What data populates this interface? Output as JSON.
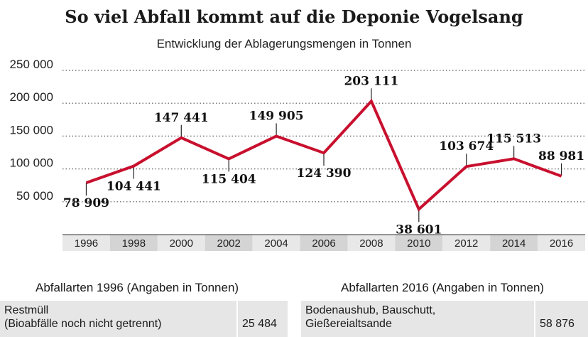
{
  "chart_data": {
    "type": "line",
    "title": "So viel Abfall kommt auf die Deponie Vogelsang",
    "subtitle": "Entwicklung der Ablagerungsmengen in Tonnen",
    "xlabel": "",
    "ylabel": "",
    "ylim": [
      0,
      250000
    ],
    "yticks": [
      {
        "value": 50000,
        "label": "50 000"
      },
      {
        "value": 100000,
        "label": "100 000"
      },
      {
        "value": 150000,
        "label": "150 000"
      },
      {
        "value": 200000,
        "label": "200 000"
      },
      {
        "value": 250000,
        "label": "250 000"
      }
    ],
    "grid": true,
    "color": "#c8102e",
    "series": [
      {
        "name": "Ablagerungsmenge",
        "points": [
          {
            "year": "1996",
            "value": 78909,
            "label": "78 909",
            "label_pos": "below"
          },
          {
            "year": "1998",
            "value": 104441,
            "label": "104 441",
            "label_pos": "below"
          },
          {
            "year": "2000",
            "value": 147441,
            "label": "147 441",
            "label_pos": "above"
          },
          {
            "year": "2002",
            "value": 115404,
            "label": "115 404",
            "label_pos": "below"
          },
          {
            "year": "2004",
            "value": 149905,
            "label": "149 905",
            "label_pos": "above"
          },
          {
            "year": "2006",
            "value": 124390,
            "label": "124 390",
            "label_pos": "below"
          },
          {
            "year": "2008",
            "value": 203111,
            "label": "203 111",
            "label_pos": "above"
          },
          {
            "year": "2010",
            "value": 38601,
            "label": "38 601",
            "label_pos": "below"
          },
          {
            "year": "2012",
            "value": 103674,
            "label": "103 674",
            "label_pos": "above"
          },
          {
            "year": "2014",
            "value": 115513,
            "label": "115 513",
            "label_pos": "above"
          },
          {
            "year": "2016",
            "value": 88981,
            "label": "88 981",
            "label_pos": "above"
          }
        ]
      }
    ]
  },
  "tables": {
    "left": {
      "title": "Abfallarten 1996 (Angaben in Tonnen)",
      "rows": [
        {
          "category_line1": "Restmüll",
          "category_line2": "(Bioabfälle noch nicht getrennt)",
          "value": "25 484"
        }
      ]
    },
    "right": {
      "title": "Abfallarten 2016 (Angaben in Tonnen)",
      "rows": [
        {
          "category_line1": "Bodenaushub, Bauschutt,",
          "category_line2": "Gießereialtsande",
          "value": "58 876"
        }
      ]
    }
  }
}
